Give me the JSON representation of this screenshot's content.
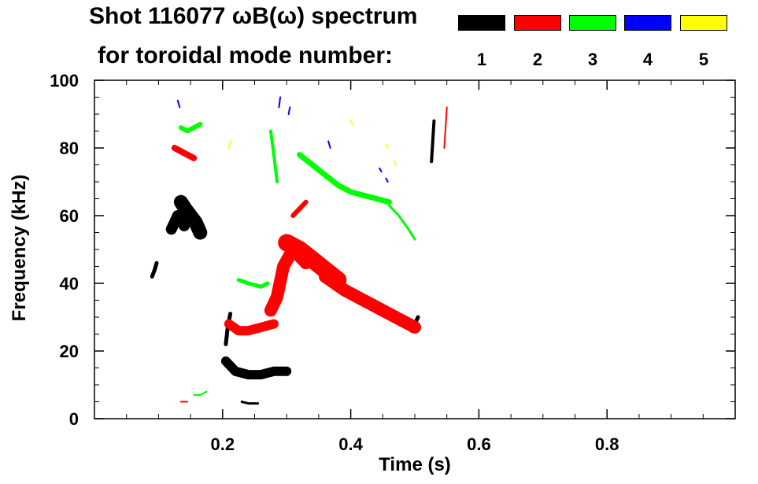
{
  "title_line1": "Shot 116077 ωB(ω) spectrum",
  "title_line2": "for toroidal mode number:",
  "legend": [
    {
      "label": "1",
      "color": "#000000"
    },
    {
      "label": "2",
      "color": "#ff0000"
    },
    {
      "label": "3",
      "color": "#00ff00"
    },
    {
      "label": "4",
      "color": "#0000ff"
    },
    {
      "label": "5",
      "color": "#ffff00"
    }
  ],
  "chart_data": {
    "type": "heatmap",
    "xlabel": "Time (s)",
    "ylabel": "Frequency (kHz)",
    "xlim": [
      0.0,
      1.0
    ],
    "ylim": [
      0,
      100
    ],
    "xticks": [
      0.2,
      0.4,
      0.6,
      0.8
    ],
    "xtick_labels": [
      "0.2",
      "0.4",
      "0.6",
      "0.8"
    ],
    "yticks": [
      0,
      20,
      40,
      60,
      80,
      100
    ],
    "ytick_labels": [
      "0",
      "20",
      "40",
      "60",
      "80",
      "100"
    ],
    "grid": false,
    "legend_position": "top",
    "series": [
      {
        "name": "1",
        "color": "#000000",
        "traces": [
          {
            "t": [
              0.09,
              0.094,
              0.097
            ],
            "f": [
              42,
              44,
              46
            ],
            "w": 5
          },
          {
            "t": [
              0.12,
              0.125,
              0.13,
              0.135,
              0.14
            ],
            "f": [
              56,
              58,
              60,
              59,
              57
            ],
            "w": 14
          },
          {
            "t": [
              0.135,
              0.142,
              0.15,
              0.158,
              0.165
            ],
            "f": [
              64,
              62,
              60,
              58,
              55
            ],
            "w": 18
          },
          {
            "t": [
              0.205,
              0.22,
              0.24,
              0.26,
              0.28,
              0.3
            ],
            "f": [
              17,
              14,
              13,
              13,
              14,
              14
            ],
            "w": 12
          },
          {
            "t": [
              0.205,
              0.208,
              0.212
            ],
            "f": [
              22,
              27,
              31
            ],
            "w": 5
          },
          {
            "t": [
              0.23,
              0.24,
              0.255
            ],
            "f": [
              5,
              4.5,
              4.5
            ],
            "w": 3
          },
          {
            "t": [
              0.495,
              0.5,
              0.505
            ],
            "f": [
              26,
              28,
              30
            ],
            "w": 5
          },
          {
            "t": [
              0.526,
              0.528,
              0.53
            ],
            "f": [
              76,
              82,
              88
            ],
            "w": 4
          }
        ]
      },
      {
        "name": "2",
        "color": "#ff0000",
        "traces": [
          {
            "t": [
              0.125,
              0.135,
              0.145,
              0.155
            ],
            "f": [
              80,
              79,
              78,
              77
            ],
            "w": 8
          },
          {
            "t": [
              0.21,
              0.225,
              0.24,
              0.26,
              0.28
            ],
            "f": [
              28,
              26,
              26,
              27,
              28
            ],
            "w": 12
          },
          {
            "t": [
              0.275,
              0.285,
              0.295,
              0.31,
              0.33
            ],
            "f": [
              32,
              36,
              45,
              50,
              46
            ],
            "w": 16
          },
          {
            "t": [
              0.3,
              0.32,
              0.34,
              0.36,
              0.38
            ],
            "f": [
              52,
              50,
              47,
              44,
              41
            ],
            "w": 22
          },
          {
            "t": [
              0.36,
              0.39,
              0.42,
              0.45,
              0.48,
              0.5
            ],
            "f": [
              42,
              38,
              35,
              32,
              29,
              27
            ],
            "w": 16
          },
          {
            "t": [
              0.31,
              0.32,
              0.33
            ],
            "f": [
              60,
              62,
              64
            ],
            "w": 6
          },
          {
            "t": [
              0.546,
              0.548,
              0.55
            ],
            "f": [
              80,
              86,
              92
            ],
            "w": 2
          },
          {
            "t": [
              0.135,
              0.14,
              0.145
            ],
            "f": [
              5,
              5,
              5
            ],
            "w": 2
          }
        ]
      },
      {
        "name": "3",
        "color": "#00ff00",
        "traces": [
          {
            "t": [
              0.135,
              0.145,
              0.155,
              0.165
            ],
            "f": [
              86,
              85,
              86,
              87
            ],
            "w": 6
          },
          {
            "t": [
              0.225,
              0.24,
              0.26,
              0.27
            ],
            "f": [
              41,
              40,
              39,
              40
            ],
            "w": 5
          },
          {
            "t": [
              0.275,
              0.28,
              0.285
            ],
            "f": [
              85,
              78,
              70
            ],
            "w": 4
          },
          {
            "t": [
              0.32,
              0.34,
              0.36,
              0.38,
              0.4,
              0.42,
              0.44,
              0.46
            ],
            "f": [
              78,
              75,
              72,
              69,
              67,
              66,
              65,
              64
            ],
            "w": 7
          },
          {
            "t": [
              0.46,
              0.475,
              0.49,
              0.5
            ],
            "f": [
              63,
              60,
              56,
              53
            ],
            "w": 3
          },
          {
            "t": [
              0.155,
              0.165,
              0.175
            ],
            "f": [
              7,
              7,
              8
            ],
            "w": 2
          }
        ]
      },
      {
        "name": "4",
        "color": "#0000ff",
        "traces": [
          {
            "t": [
              0.13,
              0.133
            ],
            "f": [
              94,
              92
            ],
            "w": 2
          },
          {
            "t": [
              0.288,
              0.29
            ],
            "f": [
              92,
              95
            ],
            "w": 2
          },
          {
            "t": [
              0.303,
              0.305
            ],
            "f": [
              90,
              92
            ],
            "w": 2
          },
          {
            "t": [
              0.365,
              0.368
            ],
            "f": [
              82,
              80
            ],
            "w": 2
          },
          {
            "t": [
              0.445,
              0.448
            ],
            "f": [
              74,
              73
            ],
            "w": 2
          },
          {
            "t": [
              0.455,
              0.458
            ],
            "f": [
              71,
              70
            ],
            "w": 2
          }
        ]
      },
      {
        "name": "5",
        "color": "#ffff00",
        "traces": [
          {
            "t": [
              0.21,
              0.212
            ],
            "f": [
              80,
              82
            ],
            "w": 2
          },
          {
            "t": [
              0.4,
              0.403
            ],
            "f": [
              88,
              87
            ],
            "w": 2
          },
          {
            "t": [
              0.455,
              0.458
            ],
            "f": [
              81,
              80
            ],
            "w": 2
          },
          {
            "t": [
              0.468,
              0.47
            ],
            "f": [
              76,
              75
            ],
            "w": 2
          }
        ]
      }
    ]
  }
}
